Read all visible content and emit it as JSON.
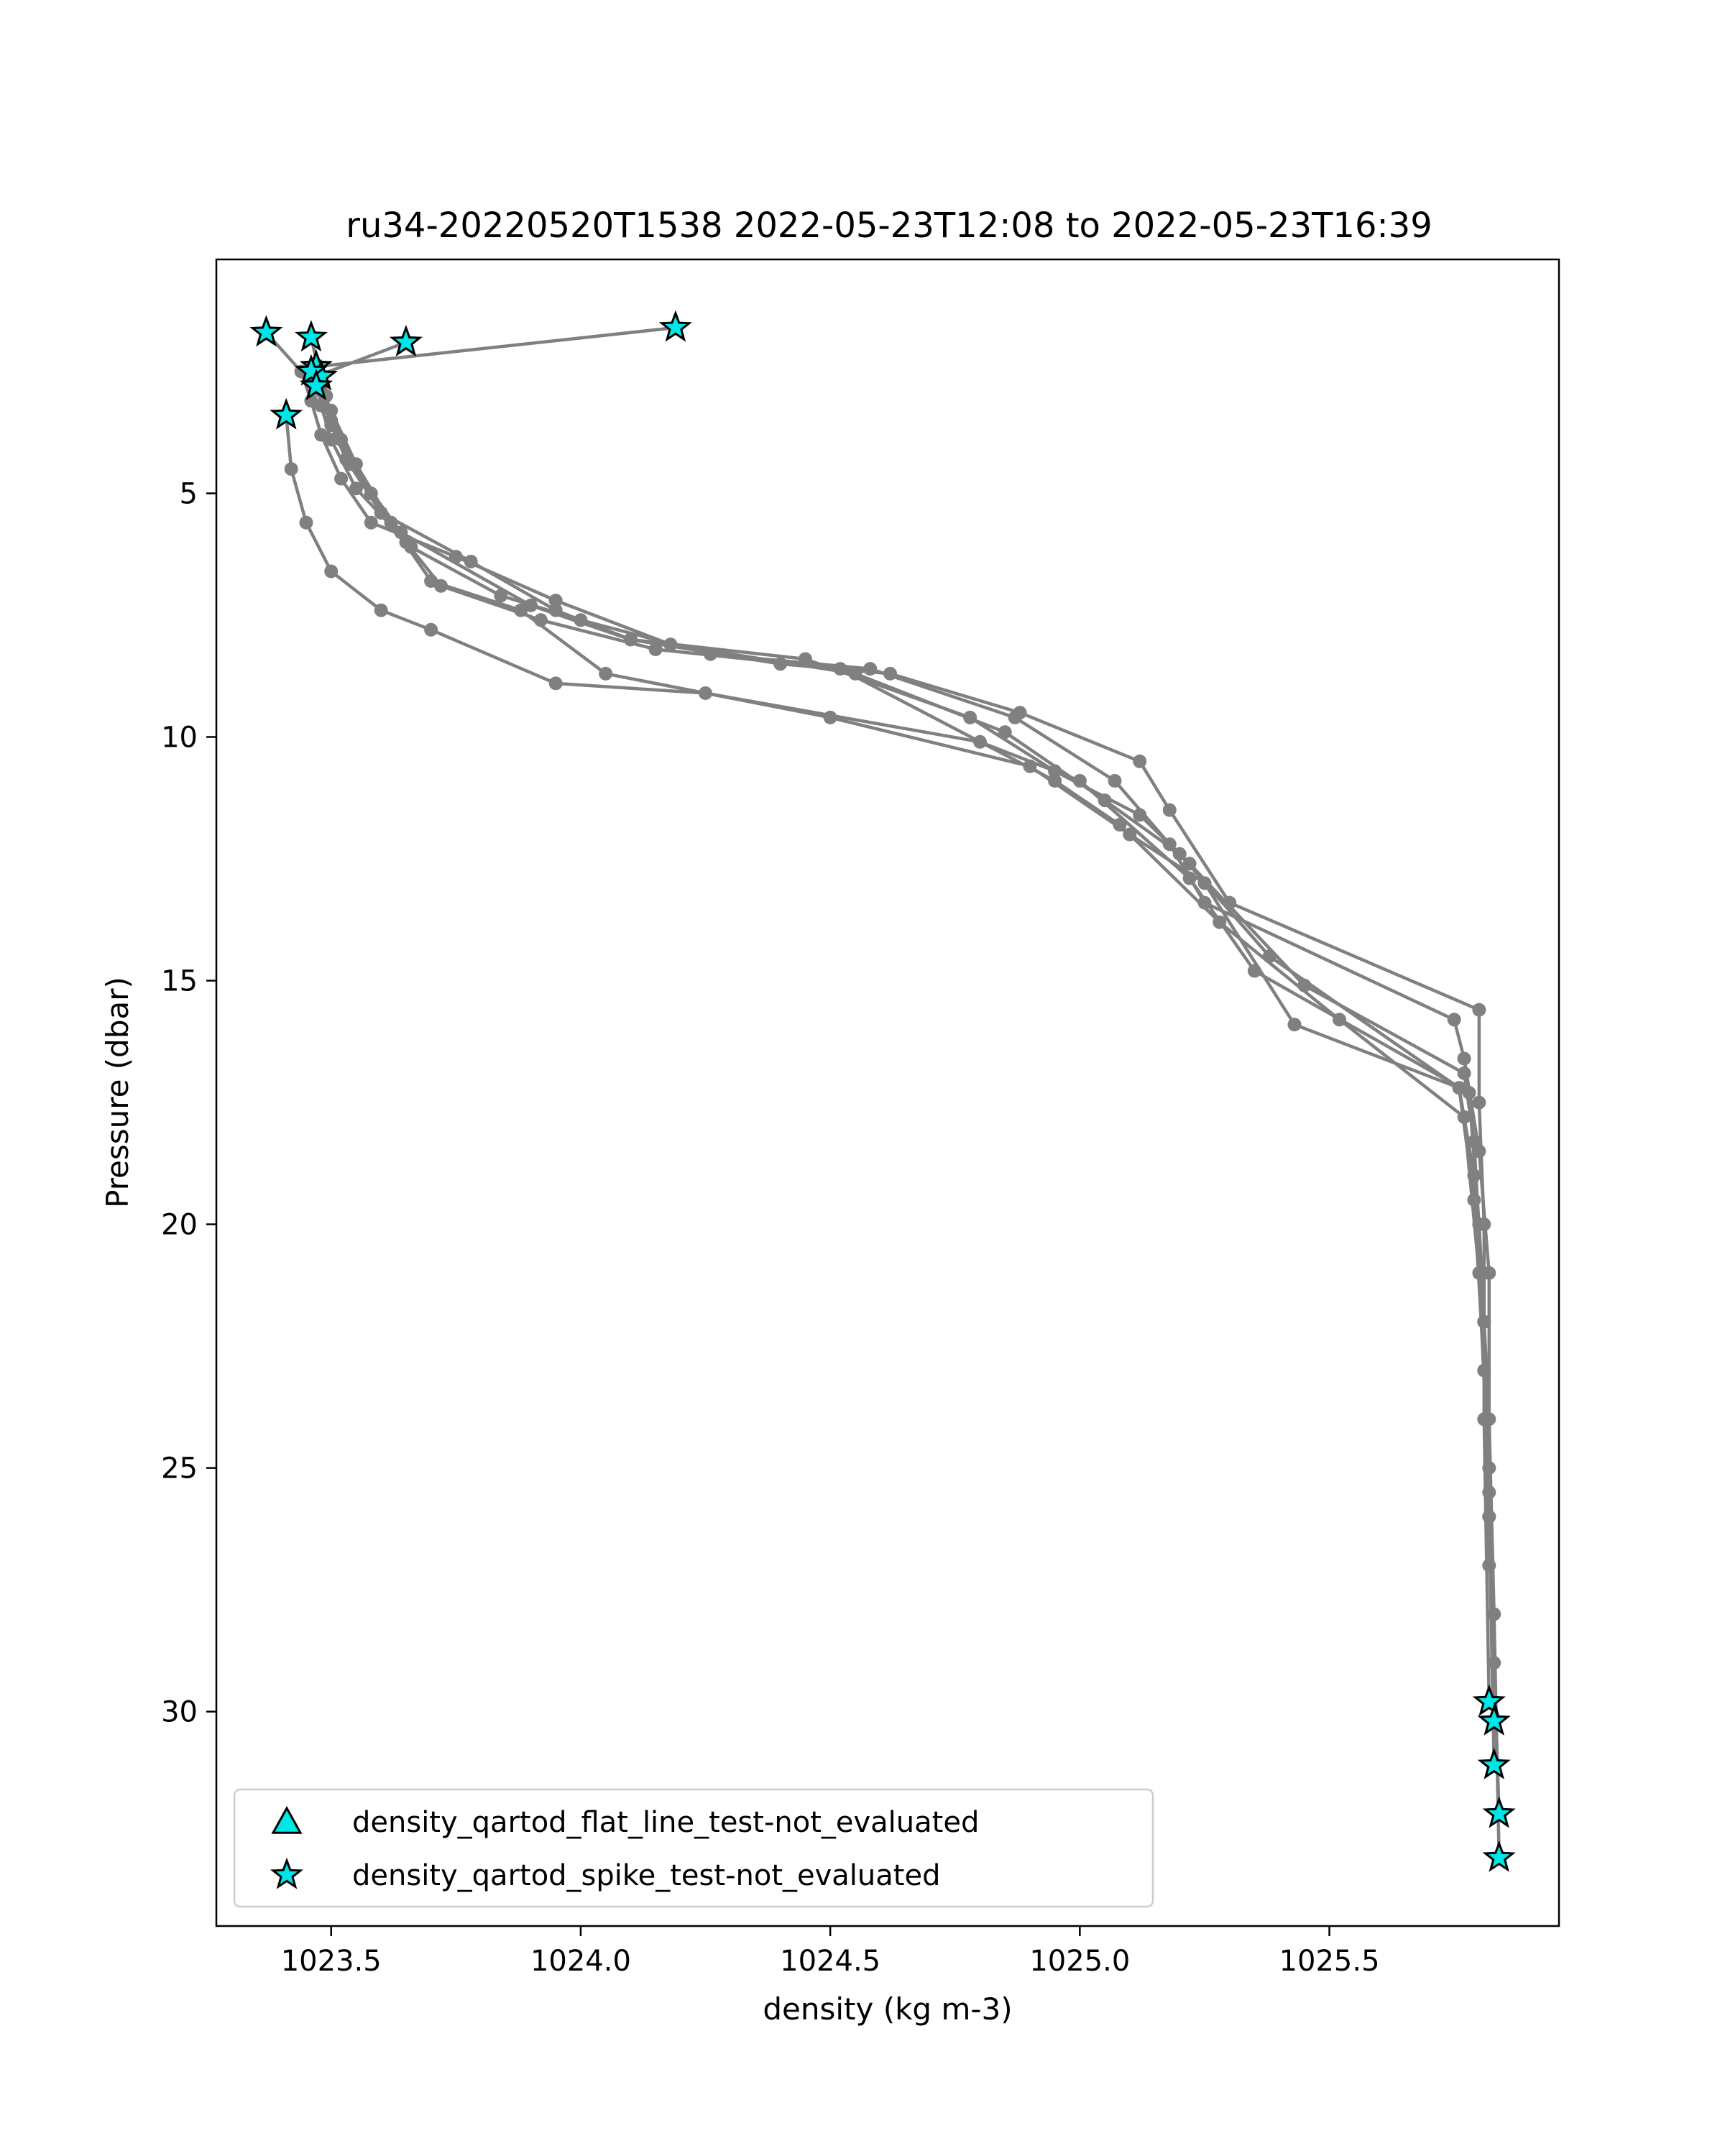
{
  "chart_data": {
    "type": "scatter",
    "title": "ru34-20220520T1538 2022-05-23T12:08 to 2022-05-23T16:39",
    "xlabel": "density (kg m-3)",
    "ylabel": "Pressure (dbar)",
    "xlim": [
      1023.27,
      1025.96
    ],
    "ylim": [
      34.4,
      0.2
    ],
    "y_inverted": true,
    "x_ticks": [
      1023.5,
      1024.0,
      1024.5,
      1025.0,
      1025.5
    ],
    "x_tick_labels": [
      "1023.5",
      "1024.0",
      "1024.5",
      "1025.0",
      "1025.5"
    ],
    "y_ticks": [
      5,
      10,
      15,
      20,
      25,
      30
    ],
    "y_tick_labels": [
      "5",
      "10",
      "15",
      "20",
      "25",
      "30"
    ],
    "grid": false,
    "legend_position": "lower-left",
    "legend": [
      {
        "label": "density_qartod_flat_line_test-not_evaluated",
        "marker": "triangle"
      },
      {
        "label": "density_qartod_spike_test-not_evaluated",
        "marker": "star"
      }
    ],
    "profile_color": "#808080",
    "flag_color": "#00e5e5",
    "profiles": [
      {
        "x": [
          1024.19,
          1023.47,
          1023.49,
          1023.5,
          1023.53,
          1023.6,
          1023.78,
          1023.95,
          1024.1,
          1024.4,
          1024.62,
          1024.88,
          1025.12,
          1025.18,
          1025.3,
          1025.8,
          1025.8,
          1025.81,
          1025.81,
          1025.82
        ],
        "y": [
          1.6,
          2.4,
          3.0,
          3.6,
          4.3,
          5.4,
          6.4,
          7.4,
          8.0,
          8.5,
          8.7,
          9.5,
          10.5,
          11.5,
          13.4,
          15.6,
          17.5,
          20.0,
          24.0,
          29.8
        ]
      },
      {
        "x": [
          1023.65,
          1023.47,
          1023.48,
          1023.5,
          1023.55,
          1023.66,
          1023.84,
          1024.0,
          1024.26,
          1024.58,
          1024.87,
          1025.07,
          1025.18,
          1025.25,
          1025.75,
          1025.77,
          1025.8,
          1025.82,
          1025.82,
          1025.83
        ],
        "y": [
          1.9,
          2.6,
          3.2,
          3.9,
          4.9,
          6.1,
          7.1,
          7.6,
          8.3,
          8.6,
          9.6,
          10.9,
          12.2,
          13.4,
          15.8,
          16.6,
          18.5,
          21.0,
          25.0,
          30.2
        ]
      },
      {
        "x": [
          1023.46,
          1023.48,
          1023.5,
          1023.54,
          1023.64,
          1023.9,
          1024.1,
          1024.45,
          1024.78,
          1024.95,
          1025.12,
          1025.22,
          1025.45,
          1025.77,
          1025.79,
          1025.81,
          1025.82,
          1025.83
        ],
        "y": [
          1.8,
          2.7,
          3.5,
          4.4,
          5.8,
          7.3,
          8.0,
          8.4,
          9.6,
          10.7,
          11.6,
          12.6,
          15.1,
          16.9,
          18.3,
          22.0,
          26.0,
          31.1
        ]
      },
      {
        "x": [
          1023.37,
          1023.44,
          1023.46,
          1023.48,
          1023.52,
          1023.58,
          1023.75,
          1023.95,
          1024.18,
          1024.55,
          1024.85,
          1025.05,
          1025.2,
          1025.38,
          1025.76,
          1025.79,
          1025.81,
          1025.82,
          1025.83,
          1025.84
        ],
        "y": [
          1.7,
          2.5,
          3.1,
          3.8,
          4.7,
          5.6,
          6.3,
          7.2,
          8.1,
          8.7,
          9.9,
          11.3,
          12.4,
          14.5,
          17.2,
          19.0,
          22.0,
          26.0,
          29.0,
          32.1
        ]
      },
      {
        "x": [
          1023.41,
          1023.42,
          1023.45,
          1023.5,
          1023.6,
          1023.7,
          1023.95,
          1024.25,
          1024.8,
          1025.0,
          1025.22,
          1025.35,
          1025.78,
          1025.8,
          1025.82,
          1025.83,
          1025.84
        ],
        "y": [
          3.4,
          4.5,
          5.6,
          6.6,
          7.4,
          7.8,
          8.9,
          9.1,
          10.1,
          10.9,
          12.9,
          14.8,
          17.3,
          20.0,
          24.0,
          28.0,
          33.0
        ]
      },
      {
        "x": [
          1023.47,
          1023.5,
          1023.55,
          1023.62,
          1023.7,
          1023.88,
          1024.05,
          1024.5,
          1024.9,
          1025.1,
          1025.25,
          1025.43,
          1025.76,
          1025.79,
          1025.81,
          1025.82
        ],
        "y": [
          2.6,
          3.3,
          4.4,
          5.6,
          6.8,
          7.4,
          8.7,
          9.6,
          10.6,
          12.0,
          13.0,
          15.9,
          17.2,
          19.5,
          23.0,
          27.0
        ]
      },
      {
        "x": [
          1023.48,
          1023.52,
          1023.58,
          1023.65,
          1023.72,
          1023.92,
          1024.15,
          1024.52,
          1024.95,
          1025.08,
          1025.28,
          1025.52,
          1025.77,
          1025.8,
          1025.82
        ],
        "y": [
          2.9,
          3.9,
          5.0,
          6.0,
          6.9,
          7.6,
          8.2,
          8.6,
          10.9,
          11.8,
          13.8,
          15.8,
          17.8,
          21.0,
          25.5
        ]
      }
    ],
    "spike_flags": {
      "x": [
        1023.37,
        1023.46,
        1023.65,
        1024.19,
        1023.47,
        1023.48,
        1023.46,
        1023.47,
        1023.41,
        1025.82,
        1025.83,
        1025.83,
        1025.84,
        1025.84
      ],
      "y": [
        1.7,
        1.8,
        1.9,
        1.6,
        2.4,
        2.6,
        2.5,
        2.8,
        3.4,
        29.8,
        30.2,
        31.1,
        32.1,
        33.0
      ]
    }
  }
}
